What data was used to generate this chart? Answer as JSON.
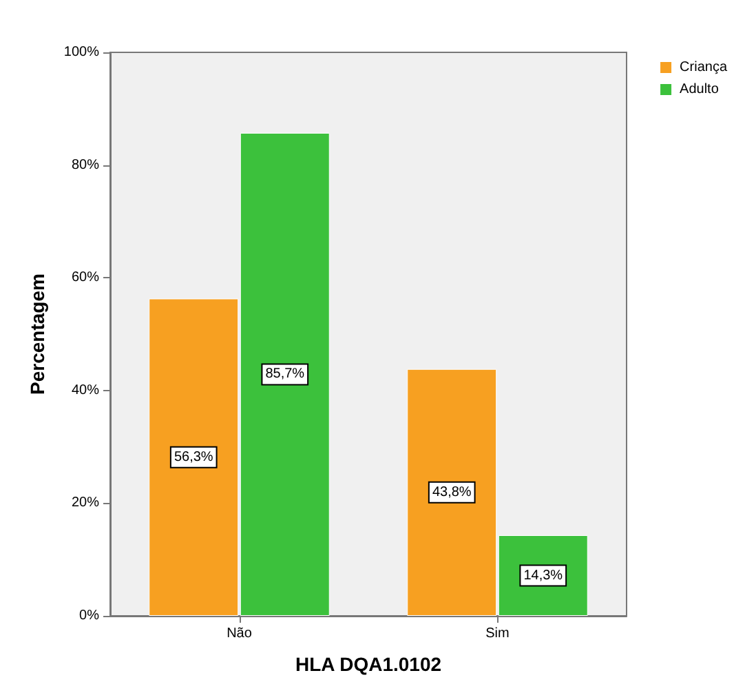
{
  "chart_data": {
    "type": "bar",
    "xlabel": "HLA DQA1.0102",
    "ylabel": "Percentagem",
    "categories": [
      "Não",
      "Sim"
    ],
    "series": [
      {
        "name": "Criança",
        "color": "#f7a021",
        "values": [
          56.3,
          43.8
        ],
        "value_labels": [
          "56,3%",
          "43,8%"
        ]
      },
      {
        "name": "Adulto",
        "color": "#3cc13c",
        "values": [
          85.7,
          14.3
        ],
        "value_labels": [
          "85,7%",
          "14,3%"
        ]
      }
    ],
    "ylim": [
      0,
      100
    ],
    "yticks": [
      {
        "value": 0,
        "label": "0%"
      },
      {
        "value": 20,
        "label": "20%"
      },
      {
        "value": 40,
        "label": "40%"
      },
      {
        "value": 60,
        "label": "60%"
      },
      {
        "value": 80,
        "label": "80%"
      },
      {
        "value": 100,
        "label": "100%"
      }
    ],
    "grid": false,
    "legend": "top right"
  }
}
